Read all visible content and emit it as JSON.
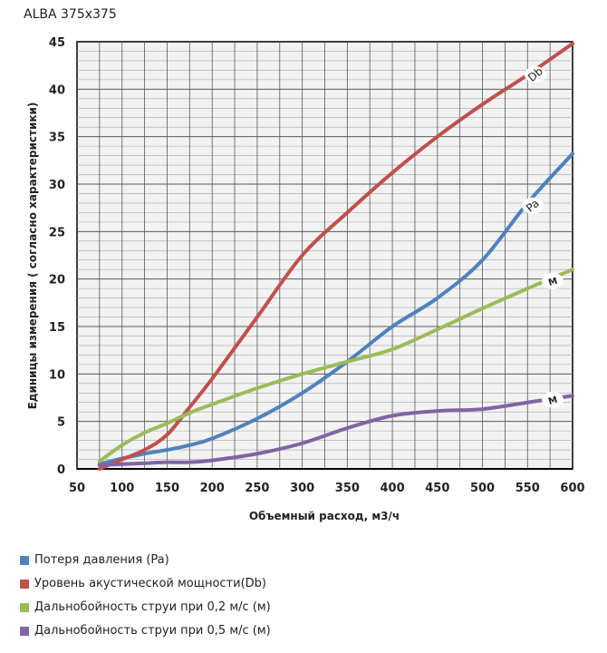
{
  "chart_data": {
    "type": "line",
    "title": "ALBA 375x375",
    "xlabel": "Объемный расход, м3/ч",
    "ylabel": "Единицы измерения ( согласно характеристики)",
    "xlim": [
      50,
      600
    ],
    "ylim": [
      0,
      45
    ],
    "xticks": [
      50,
      100,
      150,
      200,
      250,
      300,
      350,
      400,
      450,
      500,
      550,
      600
    ],
    "yticks": [
      0,
      5,
      10,
      15,
      20,
      25,
      30,
      35,
      40,
      45
    ],
    "grid": true,
    "legend_position": "bottom",
    "x": [
      75,
      100,
      125,
      150,
      175,
      200,
      250,
      300,
      350,
      400,
      450,
      500,
      550,
      600
    ],
    "series": [
      {
        "name": "Потеря давления (Pa)",
        "label": "Pa",
        "color": "#4f81bd",
        "values": [
          0.5,
          1.1,
          1.6,
          2.0,
          2.5,
          3.2,
          5.3,
          8.0,
          11.3,
          15.0,
          18.0,
          22.0,
          28.0,
          33.2
        ]
      },
      {
        "name": "Уровень акустической мощности(Db)",
        "label": "Db",
        "color": "#c0504d",
        "values": [
          0.0,
          1.0,
          2.0,
          3.6,
          6.5,
          9.5,
          16.0,
          22.5,
          27.0,
          31.2,
          35.0,
          38.4,
          41.5,
          44.8
        ]
      },
      {
        "name": "Дальнобойность струи при 0,2 м/с (м)",
        "label": "M",
        "color": "#9bbb59",
        "values": [
          0.8,
          2.5,
          3.8,
          4.8,
          5.9,
          6.8,
          8.5,
          10.0,
          11.3,
          12.6,
          14.7,
          16.9,
          19.0,
          21.0
        ]
      },
      {
        "name": "Дальнобойность струи при 0,5 м/с (м)",
        "label": "M",
        "color": "#8064a2",
        "values": [
          0.4,
          0.5,
          0.6,
          0.7,
          0.7,
          0.9,
          1.6,
          2.7,
          4.3,
          5.6,
          6.1,
          6.3,
          7.0,
          7.7
        ]
      }
    ]
  }
}
